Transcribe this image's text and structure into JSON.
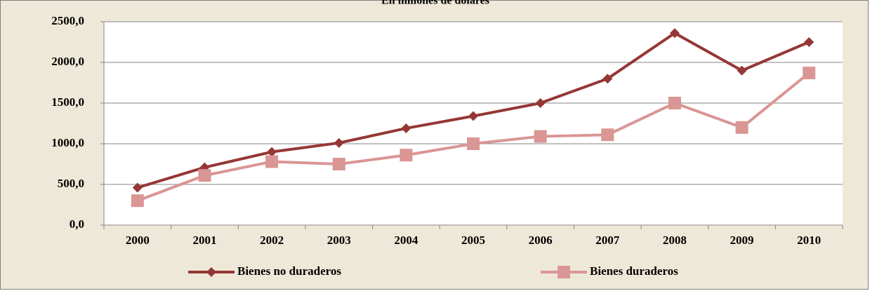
{
  "chart_data": {
    "type": "line",
    "title": "En millones de dólares",
    "categories": [
      "2000",
      "2001",
      "2002",
      "2003",
      "2004",
      "2005",
      "2006",
      "2007",
      "2008",
      "2009",
      "2010"
    ],
    "series": [
      {
        "name": "Bienes no duraderos",
        "color": "#953735",
        "marker": "diamond",
        "values": [
          460,
          710,
          900,
          1010,
          1190,
          1340,
          1500,
          1800,
          2360,
          1900,
          2250
        ]
      },
      {
        "name": "Bienes duraderos",
        "color": "#d99694",
        "marker": "square",
        "values": [
          300,
          610,
          780,
          750,
          860,
          1000,
          1090,
          1110,
          1500,
          1200,
          1870
        ]
      }
    ],
    "ylim": [
      0,
      2500
    ],
    "yticks": [
      {
        "value": 0,
        "label": "0,0"
      },
      {
        "value": 500,
        "label": "500,0"
      },
      {
        "value": 1000,
        "label": "1000,0"
      },
      {
        "value": 1500,
        "label": "1500,0"
      },
      {
        "value": 2000,
        "label": "2000,0"
      },
      {
        "value": 2500,
        "label": "2500,0"
      }
    ],
    "grid": true,
    "legend": "bottom"
  }
}
